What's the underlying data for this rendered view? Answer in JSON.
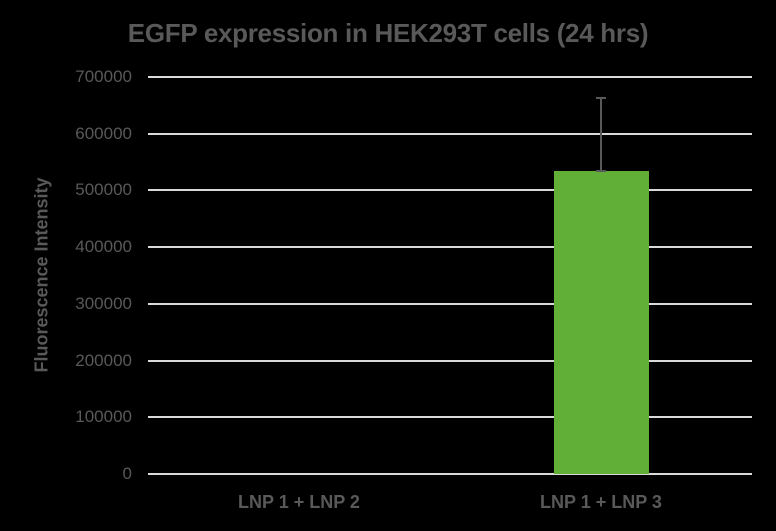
{
  "chart_data": {
    "type": "bar",
    "title": "EGFP expression in HEK293T cells (24 hrs)",
    "xlabel": "",
    "ylabel": "Fluorescence Intensity",
    "categories": [
      "LNP 1 + LNP 2",
      "LNP 1 + LNP 3"
    ],
    "values": [
      0,
      534000
    ],
    "error_bars": [
      0,
      131000
    ],
    "ylim": [
      0,
      700000
    ],
    "yticks": [
      "0",
      "100000",
      "200000",
      "300000",
      "400000",
      "500000",
      "600000",
      "700000"
    ],
    "grid": true,
    "legend": null,
    "bar_color": "#62af38",
    "background": "#000000"
  }
}
